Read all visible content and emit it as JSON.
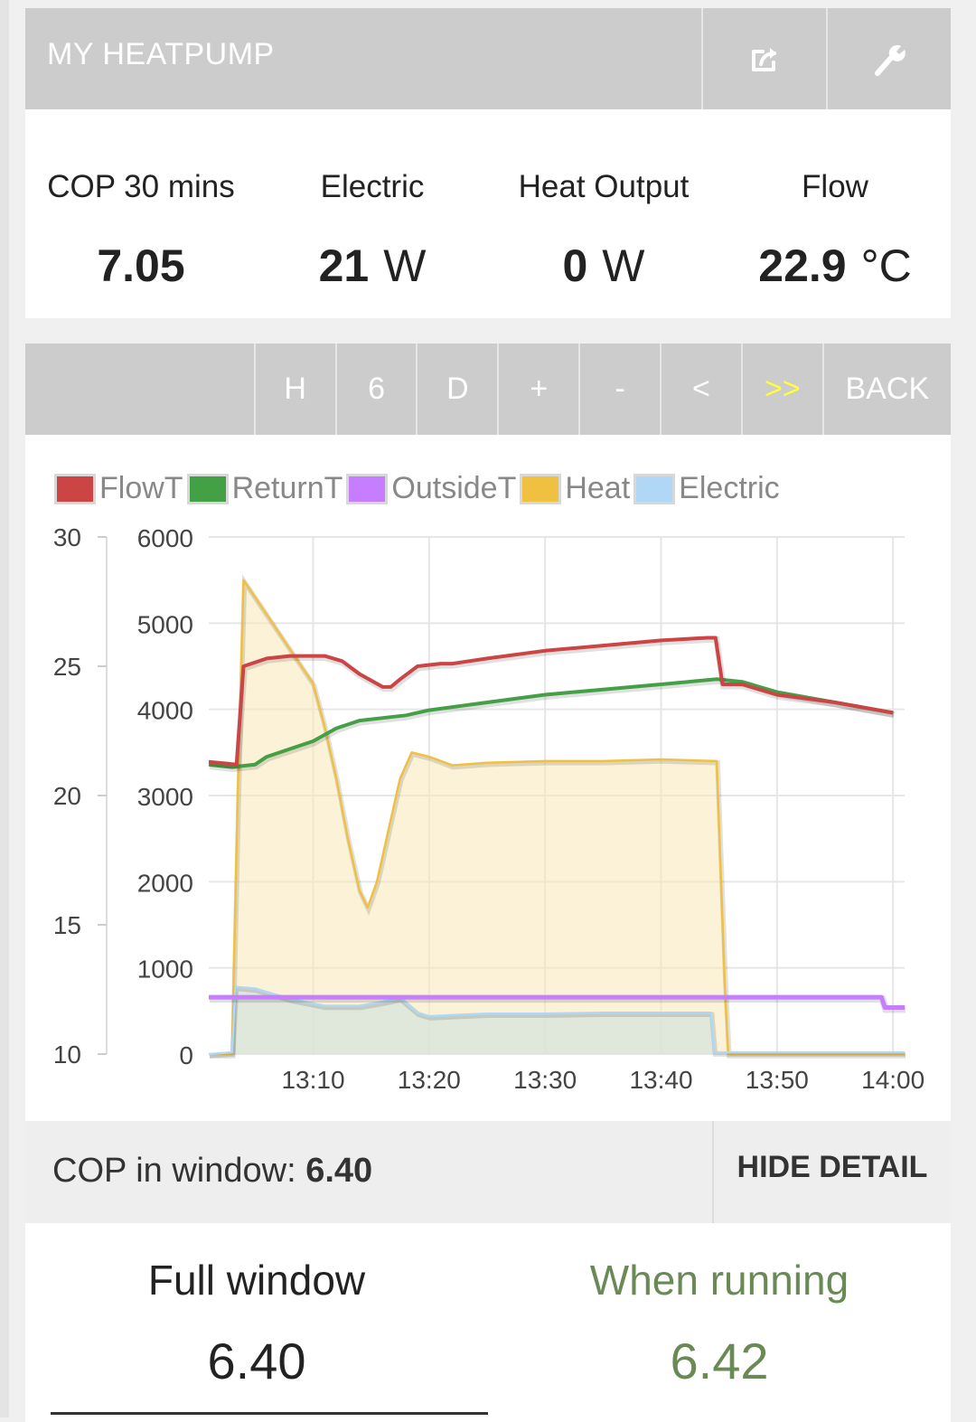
{
  "app": {
    "title": "MY HEATPUMP",
    "buttons": [
      {
        "name": "share-button",
        "icon": "share-icon"
      },
      {
        "name": "settings-button",
        "icon": "wrench-icon"
      }
    ]
  },
  "stats": [
    {
      "label": "COP 30 mins",
      "value": "7.05",
      "unit": ""
    },
    {
      "label": "Electric",
      "value": "21",
      "unit": "W"
    },
    {
      "label": "Heat Output",
      "value": "0",
      "unit": "W"
    },
    {
      "label": "Flow",
      "value": "22.9",
      "unit": "°C"
    }
  ],
  "toolbar": {
    "buttons": [
      "H",
      "6",
      "D",
      "+",
      "-",
      "<",
      ">>",
      "BACK"
    ],
    "highlighted": ">>",
    "highlight_color": "#ffff33"
  },
  "legend": [
    {
      "label": "FlowT",
      "color": "#cc4444"
    },
    {
      "label": "ReturnT",
      "color": "#44a044"
    },
    {
      "label": "OutsideT",
      "color": "#c77dff"
    },
    {
      "label": "Heat",
      "color": "#f0c040"
    },
    {
      "label": "Electric",
      "color": "#b0d8f6"
    }
  ],
  "chart_data": {
    "type": "line",
    "x_label_ticks": [
      "13:10",
      "13:20",
      "13:30",
      "13:40",
      "13:50",
      "14:00"
    ],
    "x_tick_minutes": [
      10,
      20,
      30,
      40,
      50,
      60
    ],
    "x_range_minutes": [
      1,
      61
    ],
    "y_left": {
      "ticks": [
        "30",
        "25",
        "20",
        "15",
        "10"
      ],
      "range": [
        10,
        30
      ],
      "unit": "°C"
    },
    "y_right": {
      "ticks": [
        "6000",
        "5000",
        "4000",
        "3000",
        "2000",
        "1000",
        "0"
      ],
      "range": [
        0,
        6000
      ],
      "unit": "W"
    },
    "grid": true,
    "legend_position": "top",
    "series": [
      {
        "name": "FlowT",
        "axis": "left",
        "color": "#cc4444",
        "points": [
          [
            1,
            21.3
          ],
          [
            3.4,
            21.2
          ],
          [
            4,
            25
          ],
          [
            6,
            25.3
          ],
          [
            8,
            25.4
          ],
          [
            11,
            25.4
          ],
          [
            12.5,
            25.2
          ],
          [
            14,
            24.7
          ],
          [
            16,
            24.2
          ],
          [
            16.7,
            24.2
          ],
          [
            17.5,
            24.5
          ],
          [
            19,
            25
          ],
          [
            21,
            25.1
          ],
          [
            22,
            25.1
          ],
          [
            25,
            25.3
          ],
          [
            30,
            25.6
          ],
          [
            35,
            25.8
          ],
          [
            40,
            26
          ],
          [
            44,
            26.1
          ],
          [
            44.7,
            26.1
          ],
          [
            45.3,
            24.3
          ],
          [
            47,
            24.3
          ],
          [
            50,
            23.9
          ],
          [
            55,
            23.6
          ],
          [
            60,
            23.2
          ]
        ]
      },
      {
        "name": "ReturnT",
        "axis": "left",
        "color": "#44a044",
        "points": [
          [
            1,
            21.2
          ],
          [
            3,
            21.1
          ],
          [
            5,
            21.2
          ],
          [
            6,
            21.5
          ],
          [
            8,
            21.8
          ],
          [
            10,
            22.1
          ],
          [
            12,
            22.6
          ],
          [
            14,
            22.9
          ],
          [
            16,
            23
          ],
          [
            18,
            23.1
          ],
          [
            20,
            23.3
          ],
          [
            25,
            23.6
          ],
          [
            30,
            23.9
          ],
          [
            35,
            24.1
          ],
          [
            40,
            24.3
          ],
          [
            44.8,
            24.5
          ],
          [
            47,
            24.4
          ],
          [
            50,
            24
          ],
          [
            55,
            23.6
          ],
          [
            60,
            23.2
          ]
        ]
      },
      {
        "name": "OutsideT",
        "axis": "left",
        "color": "#c77dff",
        "points": [
          [
            1,
            12.2
          ],
          [
            59,
            12.2
          ],
          [
            59.3,
            11.8
          ],
          [
            61,
            11.8
          ]
        ]
      },
      {
        "name": "Heat",
        "axis": "right",
        "color": "#f0c040",
        "points": [
          [
            1,
            0
          ],
          [
            3,
            0
          ],
          [
            3.5,
            3000
          ],
          [
            4,
            5500
          ],
          [
            5,
            5300
          ],
          [
            6,
            5100
          ],
          [
            8,
            4700
          ],
          [
            10,
            4300
          ],
          [
            11,
            3800
          ],
          [
            12,
            3200
          ],
          [
            13,
            2500
          ],
          [
            14,
            1900
          ],
          [
            14.7,
            1700
          ],
          [
            15.5,
            2000
          ],
          [
            16.5,
            2600
          ],
          [
            17.5,
            3200
          ],
          [
            18.5,
            3500
          ],
          [
            20,
            3450
          ],
          [
            22,
            3350
          ],
          [
            25,
            3380
          ],
          [
            30,
            3400
          ],
          [
            35,
            3400
          ],
          [
            40,
            3420
          ],
          [
            44.8,
            3400
          ],
          [
            45.5,
            800
          ],
          [
            45.8,
            0
          ],
          [
            61,
            0
          ]
        ]
      },
      {
        "name": "Electric",
        "axis": "right",
        "color": "#b0d8f6",
        "points": [
          [
            1,
            0
          ],
          [
            3,
            20
          ],
          [
            3.3,
            780
          ],
          [
            5,
            760
          ],
          [
            8,
            640
          ],
          [
            11,
            560
          ],
          [
            14,
            560
          ],
          [
            16.5,
            620
          ],
          [
            17.5,
            650
          ],
          [
            19,
            480
          ],
          [
            20,
            440
          ],
          [
            25,
            470
          ],
          [
            30,
            470
          ],
          [
            35,
            480
          ],
          [
            40,
            480
          ],
          [
            44.3,
            480
          ],
          [
            44.6,
            20
          ],
          [
            61,
            20
          ]
        ]
      }
    ]
  },
  "cop_window": {
    "label": "COP in window: ",
    "value": "6.40",
    "hide_label": "HIDE DETAIL"
  },
  "summary": {
    "full": {
      "title": "Full window",
      "value": "6.40"
    },
    "running": {
      "title": "When running",
      "value": "6.42"
    }
  }
}
